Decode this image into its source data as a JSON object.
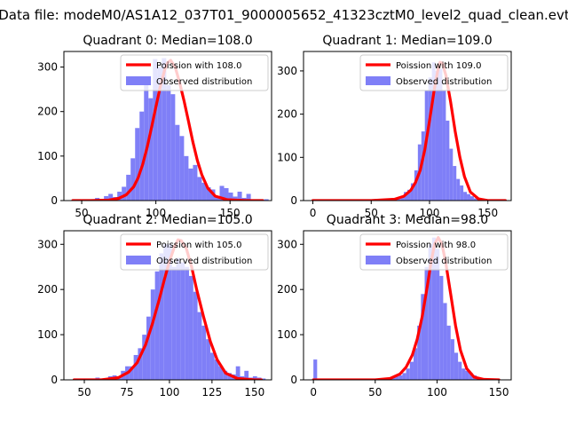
{
  "figure": {
    "suptitle": "Data file: modeM0/AS1A12_037T01_9000005652_41323cztM0_level2_quad_clean.evt"
  },
  "colors": {
    "hist": "#7f7ff7",
    "poisson": "#ff0000",
    "axes": "#000000",
    "background": "#ffffff"
  },
  "chart_data": [
    {
      "type": "bar",
      "title": "Quadrant 0: Median=108.0",
      "xlim": [
        38,
        178
      ],
      "ylim": [
        0,
        335
      ],
      "xticks": [
        50,
        100,
        150
      ],
      "yticks": [
        0,
        100,
        200,
        300
      ],
      "legend": {
        "position": "top-right",
        "entries": [
          "Poission with 108.0",
          "Observed distribution"
        ]
      },
      "median": 108,
      "hist": {
        "start": 44,
        "width": 3,
        "values": [
          2,
          2,
          2,
          2,
          3,
          6,
          2,
          10,
          15,
          8,
          20,
          31,
          58,
          95,
          163,
          200,
          268,
          230,
          318,
          300,
          320,
          260,
          239,
          170,
          145,
          100,
          72,
          80,
          53,
          40,
          30,
          25,
          10,
          33,
          28,
          18,
          9,
          20,
          6,
          15,
          3,
          3,
          1,
          3
        ]
      },
      "poisson": {
        "name": "Poission with 108.0",
        "x": [
          44,
          56,
          68,
          75,
          80,
          85,
          88,
          91,
          94,
          97,
          100,
          103,
          106,
          108,
          110,
          113,
          116,
          119,
          122,
          125,
          128,
          131,
          135,
          140,
          148,
          160,
          172
        ],
        "y": [
          0,
          0,
          1,
          5,
          13,
          31,
          51,
          80,
          118,
          163,
          210,
          256,
          295,
          310,
          315,
          300,
          265,
          224,
          178,
          131,
          90,
          58,
          28,
          10,
          2,
          0,
          0
        ]
      }
    },
    {
      "type": "bar",
      "title": "Quadrant 1: Median=109.0",
      "xlim": [
        -8,
        170
      ],
      "ylim": [
        0,
        345
      ],
      "xticks": [
        0,
        50,
        100,
        150
      ],
      "yticks": [
        0,
        100,
        200,
        300
      ],
      "legend": {
        "position": "top-right",
        "entries": [
          "Poission with 109.0",
          "Observed distribution"
        ]
      },
      "median": 109,
      "hist": {
        "start": 0,
        "width": 3,
        "values": [
          1,
          0,
          0,
          0,
          0,
          0,
          0,
          0,
          0,
          0,
          0,
          0,
          0,
          0,
          0,
          0,
          0,
          0,
          0,
          1,
          3,
          2,
          3,
          5,
          4,
          10,
          20,
          25,
          40,
          70,
          130,
          160,
          255,
          285,
          320,
          300,
          305,
          255,
          185,
          120,
          80,
          50,
          35,
          20,
          15,
          10,
          5,
          3,
          2,
          1,
          1,
          1,
          1,
          1,
          0
        ]
      },
      "poisson": {
        "name": "Poission with 109.0",
        "x": [
          0,
          50,
          70,
          78,
          84,
          88,
          92,
          96,
          100,
          104,
          107,
          109,
          111,
          114,
          118,
          122,
          126,
          130,
          135,
          142,
          150,
          165
        ],
        "y": [
          0,
          0,
          3,
          10,
          24,
          42,
          70,
          118,
          185,
          255,
          300,
          320,
          318,
          290,
          230,
          160,
          100,
          55,
          20,
          4,
          0,
          0
        ]
      }
    },
    {
      "type": "bar",
      "title": "Quadrant 2: Median=105.0",
      "xlim": [
        38,
        160
      ],
      "ylim": [
        0,
        330
      ],
      "xticks": [
        50,
        75,
        100,
        125,
        150
      ],
      "yticks": [
        0,
        100,
        200,
        300
      ],
      "legend": {
        "position": "top-right",
        "entries": [
          "Poission with 105.0",
          "Observed distribution"
        ]
      },
      "median": 105,
      "hist": {
        "start": 44,
        "width": 2.5,
        "values": [
          3,
          3,
          3,
          3,
          3,
          5,
          3,
          3,
          8,
          10,
          5,
          20,
          30,
          30,
          55,
          70,
          100,
          140,
          200,
          240,
          280,
          300,
          300,
          250,
          270,
          260,
          250,
          230,
          195,
          150,
          120,
          90,
          60,
          45,
          30,
          20,
          15,
          12,
          30,
          8,
          20,
          5,
          8,
          5,
          3
        ]
      },
      "poisson": {
        "name": "Poission with 105.0",
        "x": [
          44,
          60,
          70,
          76,
          81,
          86,
          90,
          94,
          97,
          100,
          103,
          105,
          107,
          110,
          113,
          116,
          120,
          124,
          128,
          133,
          140,
          150,
          154
        ],
        "y": [
          0,
          0,
          5,
          17,
          38,
          78,
          124,
          178,
          222,
          262,
          295,
          310,
          308,
          290,
          250,
          200,
          140,
          85,
          45,
          15,
          3,
          0,
          0
        ]
      }
    },
    {
      "type": "bar",
      "title": "Quadrant 3: Median=98.0",
      "xlim": [
        -8,
        160
      ],
      "ylim": [
        0,
        330
      ],
      "xticks": [
        0,
        50,
        100,
        150
      ],
      "yticks": [
        0,
        100,
        200,
        300
      ],
      "legend": {
        "position": "top-right",
        "entries": [
          "Poission with 98.0",
          "Observed distribution"
        ]
      },
      "median": 98,
      "hist": {
        "start": 0,
        "width": 3,
        "values": [
          45,
          0,
          0,
          0,
          0,
          0,
          0,
          0,
          0,
          0,
          0,
          0,
          0,
          0,
          0,
          0,
          0,
          0,
          0,
          2,
          4,
          5,
          8,
          10,
          15,
          25,
          40,
          70,
          120,
          190,
          250,
          300,
          315,
          290,
          230,
          170,
          120,
          90,
          60,
          40,
          25,
          20,
          15,
          10,
          5,
          3,
          2,
          1,
          1,
          1,
          1
        ]
      },
      "poisson": {
        "name": "Poission with 98.0",
        "x": [
          0,
          50,
          62,
          70,
          75,
          80,
          84,
          88,
          92,
          95,
          98,
          101,
          104,
          107,
          111,
          115,
          119,
          124,
          130,
          138,
          150
        ],
        "y": [
          0,
          0,
          3,
          13,
          28,
          55,
          90,
          140,
          205,
          258,
          300,
          315,
          300,
          260,
          190,
          120,
          65,
          25,
          6,
          1,
          0
        ]
      }
    }
  ]
}
